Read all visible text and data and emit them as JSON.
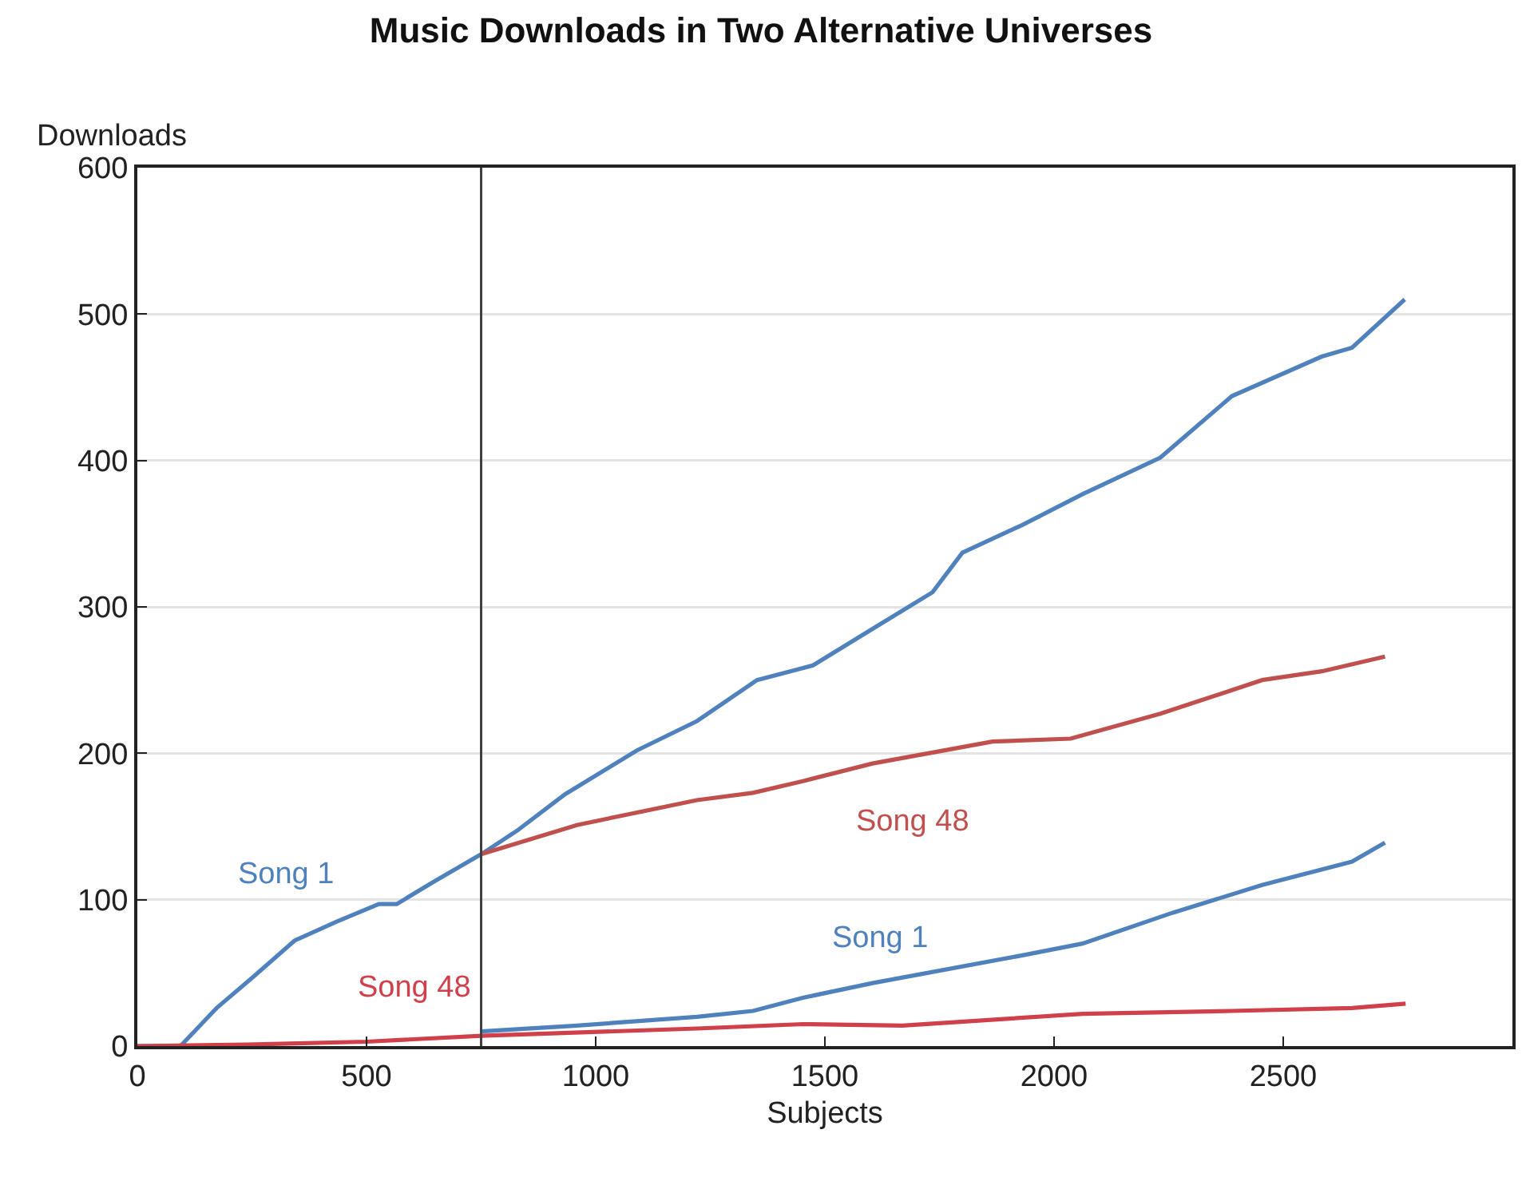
{
  "chart_data": {
    "type": "line",
    "title": "Music Downloads in Two Alternative Universes",
    "xlabel": "Subjects",
    "ylabel": "Downloads",
    "xlim": [
      0,
      3000
    ],
    "xticks": [
      0,
      500,
      1000,
      1500,
      2000,
      2500
    ],
    "ylim": [
      0,
      600
    ],
    "yticks": [
      0,
      100,
      200,
      300,
      400,
      500,
      600
    ],
    "grid": "y",
    "marker": "none",
    "line_style": "solid",
    "ref_lines": [
      {
        "axis": "x",
        "value": 750,
        "color": "#404040"
      }
    ],
    "series": [
      {
        "name": "Song 1",
        "color": "#4f81bd",
        "x": [
          0,
          94,
          173,
          252,
          343,
          435,
          527,
          566,
          645,
          750,
          828,
          933,
          1090,
          1221,
          1352,
          1474,
          1604,
          1735,
          1800,
          1931,
          2062,
          2232,
          2388,
          2584,
          2650,
          2765
        ],
        "values": [
          0,
          0,
          26,
          47,
          72,
          85,
          97,
          97,
          112,
          131,
          147,
          172,
          202,
          222,
          250,
          260,
          285,
          310,
          337,
          356,
          377,
          402,
          444,
          471,
          477,
          510
        ]
      },
      {
        "name": "Song 48",
        "color": "#d0404a",
        "x": [
          0,
          239,
          500,
          750,
          1221,
          1452,
          1669,
          2062,
          2388,
          2650,
          2767
        ],
        "values": [
          0,
          1,
          3,
          7,
          12,
          15,
          14,
          22,
          24,
          26,
          29
        ]
      },
      {
        "name": "Song 48",
        "color": "#c0504d",
        "x": [
          750,
          959,
          1221,
          1343,
          1452,
          1604,
          1866,
          2036,
          2232,
          2454,
          2584,
          2722
        ],
        "values": [
          131,
          151,
          168,
          173,
          181,
          193,
          208,
          210,
          227,
          250,
          256,
          266
        ]
      },
      {
        "name": "Song 1",
        "color": "#4f81bd",
        "x": [
          750,
          959,
          1221,
          1343,
          1452,
          1604,
          1931,
          2062,
          2258,
          2454,
          2650,
          2722
        ],
        "values": [
          10,
          14,
          20,
          24,
          33,
          43,
          62,
          70,
          91,
          110,
          126,
          139
        ]
      }
    ]
  }
}
